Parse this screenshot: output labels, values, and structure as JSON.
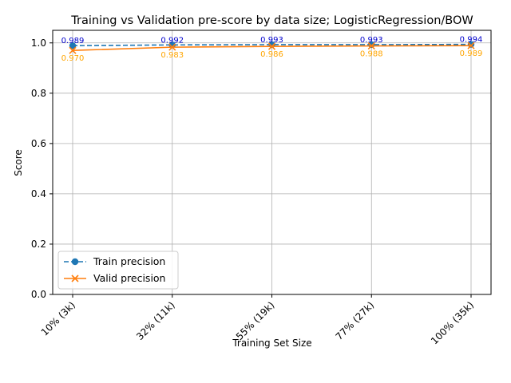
{
  "chart_data": {
    "type": "line",
    "title": "Training vs Validation pre-score by data size; LogisticRegression/BOW",
    "xlabel": "Training Set Size",
    "ylabel": "Score",
    "categories": [
      "10% (3k)",
      "32% (11k)",
      "55% (19k)",
      "77% (27k)",
      "100% (35k)"
    ],
    "ylim": [
      0.0,
      1.05
    ],
    "yticks": [
      "0.0",
      "0.2",
      "0.4",
      "0.6",
      "0.8",
      "1.0"
    ],
    "grid": true,
    "legend_position": "lower-left",
    "series": [
      {
        "name": "Train precision",
        "values": [
          0.989,
          0.992,
          0.993,
          0.993,
          0.994
        ],
        "labels": [
          "0.989",
          "0.992",
          "0.993",
          "0.993",
          "0.994"
        ],
        "color": "#1f77b4",
        "label_color": "#0000cc",
        "linestyle": "dashed",
        "marker": "circle"
      },
      {
        "name": "Valid precision",
        "values": [
          0.97,
          0.983,
          0.986,
          0.988,
          0.989
        ],
        "labels": [
          "0.970",
          "0.983",
          "0.986",
          "0.988",
          "0.989"
        ],
        "color": "#ff7f0e",
        "label_color": "#ffa500",
        "linestyle": "solid",
        "marker": "x"
      }
    ]
  }
}
